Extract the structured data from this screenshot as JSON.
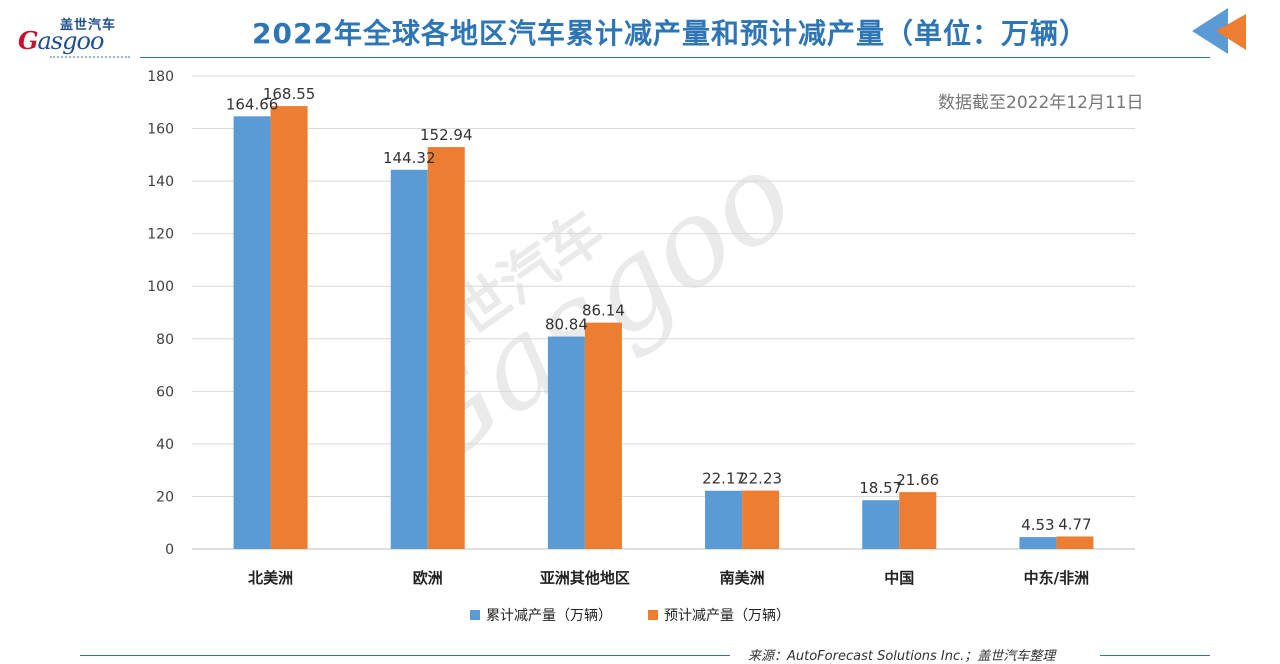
{
  "logo": {
    "cn": "盖世汽车",
    "en_g": "G",
    "en_rest": "asgoo"
  },
  "header": {
    "title": "2022年全球各地区汽车累计减产量和预计减产量（单位：万辆）"
  },
  "note": "数据截至2022年12月11日",
  "watermark": {
    "cn": "盖世汽车",
    "en": "Gasgoo"
  },
  "source": "来源：AutoForecast Solutions Inc.；盖世汽车整理",
  "colors": {
    "series1": "#5b9bd5",
    "series2": "#ed7d31",
    "title": "#2e75b6",
    "grid": "#d9d9d9"
  },
  "chart_data": {
    "type": "bar",
    "title": "2022年全球各地区汽车累计减产量和预计减产量（单位：万辆）",
    "categories": [
      "北美洲",
      "欧洲",
      "亚洲其他地区",
      "南美洲",
      "中国",
      "中东/非洲"
    ],
    "series": [
      {
        "name": "累计减产量（万辆）",
        "values": [
          164.66,
          144.32,
          80.84,
          22.17,
          18.57,
          4.53
        ]
      },
      {
        "name": "预计减产量（万辆）",
        "values": [
          168.55,
          152.94,
          86.14,
          22.23,
          21.66,
          4.77
        ]
      }
    ],
    "ylim": [
      0,
      180
    ],
    "yticks": [
      0,
      20,
      40,
      60,
      80,
      100,
      120,
      140,
      160,
      180
    ],
    "grid": true,
    "legend": "bottom"
  }
}
